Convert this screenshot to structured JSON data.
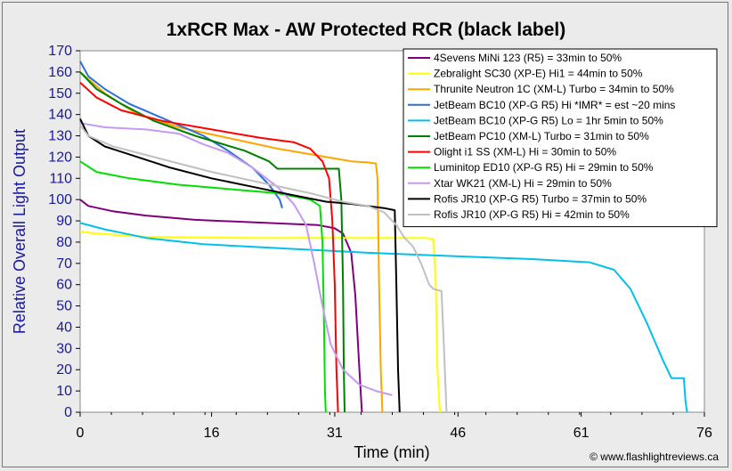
{
  "chart_data": {
    "type": "line",
    "title": "1xRCR Max - AW Protected RCR (black label)",
    "xlabel": "Time (min)",
    "ylabel": "Relative Overall Light Output",
    "xlim": [
      0,
      76
    ],
    "ylim": [
      0,
      170
    ],
    "xticks": [
      "0",
      "16",
      "31",
      "46",
      "61",
      "76"
    ],
    "yticks": [
      "0",
      "10",
      "20",
      "30",
      "40",
      "50",
      "60",
      "70",
      "80",
      "90",
      "100",
      "110",
      "120",
      "130",
      "140",
      "150",
      "160",
      "170"
    ],
    "legend_position": "top-right",
    "credit": "© www.flashlightreviews.ca",
    "series": [
      {
        "name": "4Sevens MiNi 123 (R5) = 33min to 50%",
        "color": "#800080",
        "points": [
          [
            0,
            100
          ],
          [
            1,
            97
          ],
          [
            4,
            94.5
          ],
          [
            8,
            92.5
          ],
          [
            14,
            90.5
          ],
          [
            20,
            89.5
          ],
          [
            26,
            88.5
          ],
          [
            29,
            88
          ],
          [
            31,
            86.5
          ],
          [
            32,
            84
          ],
          [
            33,
            75
          ],
          [
            33.5,
            55
          ],
          [
            34,
            20
          ],
          [
            34.3,
            0
          ]
        ]
      },
      {
        "name": "Zebralight SC30 (XP-E) Hi1 = 44min to 50%",
        "color": "#ffff00",
        "points": [
          [
            0,
            85
          ],
          [
            2,
            84
          ],
          [
            8,
            82.5
          ],
          [
            20,
            82
          ],
          [
            35,
            82
          ],
          [
            42,
            82
          ],
          [
            43,
            81.5
          ],
          [
            43.3,
            60
          ],
          [
            43.5,
            20
          ],
          [
            43.8,
            0
          ]
        ]
      },
      {
        "name": "Thrunite Neutron 1C (XM-L) Turbo = 34min to 50%",
        "color": "#ffa500",
        "points": [
          [
            0,
            160
          ],
          [
            3,
            150
          ],
          [
            7,
            140
          ],
          [
            12,
            134
          ],
          [
            18,
            129
          ],
          [
            24,
            124
          ],
          [
            30,
            120
          ],
          [
            33,
            118
          ],
          [
            35,
            117.5
          ],
          [
            36,
            117
          ],
          [
            36.2,
            110
          ],
          [
            36.4,
            60
          ],
          [
            36.6,
            20
          ],
          [
            36.8,
            0
          ]
        ]
      },
      {
        "name": "JetBeam BC10 (XP-G R5) Hi *IMR* = est ~20 mins",
        "color": "#2e6fd6",
        "points": [
          [
            0,
            165
          ],
          [
            1,
            158
          ],
          [
            3,
            152
          ],
          [
            6,
            145
          ],
          [
            9,
            140
          ],
          [
            12,
            135
          ],
          [
            15,
            130
          ],
          [
            18,
            123
          ],
          [
            21,
            115
          ],
          [
            23,
            107
          ],
          [
            24.3,
            100
          ],
          [
            24.6,
            96
          ]
        ]
      },
      {
        "name": "JetBeam BC10 (XP-G R5) Lo = 1hr 5min to 50%",
        "color": "#00c0ec",
        "points": [
          [
            0,
            89
          ],
          [
            3,
            86
          ],
          [
            8,
            82
          ],
          [
            15,
            79
          ],
          [
            25,
            77
          ],
          [
            35,
            75
          ],
          [
            45,
            73.5
          ],
          [
            55,
            72
          ],
          [
            62,
            70.5
          ],
          [
            65,
            67
          ],
          [
            67,
            58
          ],
          [
            69,
            42
          ],
          [
            71,
            24
          ],
          [
            72,
            16
          ],
          [
            73.5,
            16
          ],
          [
            73.7,
            5
          ],
          [
            73.9,
            0
          ]
        ]
      },
      {
        "name": "JetBeam PC10 (XM-L) Turbo = 31min to 50%",
        "color": "#008000",
        "points": [
          [
            0,
            160
          ],
          [
            2,
            152
          ],
          [
            5,
            145
          ],
          [
            9,
            137
          ],
          [
            14,
            130
          ],
          [
            20,
            123
          ],
          [
            23,
            118
          ],
          [
            24,
            114.5
          ],
          [
            28,
            114.5
          ],
          [
            31.5,
            114.5
          ],
          [
            31.8,
            100
          ],
          [
            32,
            60
          ],
          [
            32.1,
            20
          ],
          [
            32.2,
            0
          ]
        ]
      },
      {
        "name": "Olight i1 SS (XM-L) Hi = 30min to 50%",
        "color": "#ff0000",
        "points": [
          [
            0,
            155
          ],
          [
            2,
            148
          ],
          [
            5,
            142
          ],
          [
            10,
            137
          ],
          [
            16,
            133
          ],
          [
            22,
            129
          ],
          [
            26,
            127
          ],
          [
            28,
            124
          ],
          [
            29.5,
            118
          ],
          [
            30.3,
            110
          ],
          [
            30.7,
            90
          ],
          [
            31,
            60
          ],
          [
            31.2,
            20
          ],
          [
            31.4,
            0
          ]
        ]
      },
      {
        "name": "Luminitop ED10 (XP-G R5) Hi = 29min to 50%",
        "color": "#00e000",
        "points": [
          [
            0,
            118
          ],
          [
            2,
            113
          ],
          [
            6,
            110
          ],
          [
            12,
            107
          ],
          [
            18,
            105
          ],
          [
            24,
            103
          ],
          [
            28,
            100
          ],
          [
            29.2,
            97
          ],
          [
            29.5,
            80
          ],
          [
            29.7,
            40
          ],
          [
            29.8,
            10
          ],
          [
            29.9,
            0
          ]
        ]
      },
      {
        "name": "Xtar WK21 (XM-L) Hi = 29min to 50%",
        "color": "#c59aef",
        "points": [
          [
            0,
            136
          ],
          [
            3,
            134
          ],
          [
            8,
            133
          ],
          [
            12,
            131
          ],
          [
            15,
            126
          ],
          [
            18,
            122
          ],
          [
            21,
            115
          ],
          [
            24,
            106
          ],
          [
            26,
            98
          ],
          [
            27.5,
            88
          ],
          [
            28.5,
            70
          ],
          [
            29.5,
            50
          ],
          [
            30.5,
            32
          ],
          [
            32,
            20
          ],
          [
            34,
            13
          ],
          [
            36,
            10
          ],
          [
            38,
            8
          ]
        ]
      },
      {
        "name": "Rofis JR10 (XP-G R5) Turbo = 37min to 50%",
        "color": "#000000",
        "points": [
          [
            0,
            138
          ],
          [
            1,
            130
          ],
          [
            3,
            125
          ],
          [
            7,
            120
          ],
          [
            11,
            115
          ],
          [
            16,
            110
          ],
          [
            21,
            106
          ],
          [
            26,
            102
          ],
          [
            30,
            99
          ],
          [
            33,
            98
          ],
          [
            37,
            96
          ],
          [
            38.3,
            95
          ],
          [
            38.5,
            60
          ],
          [
            38.7,
            20
          ],
          [
            38.9,
            0
          ]
        ]
      },
      {
        "name": "Rofis JR10 (XP-G R5) Hi = 42min to 50%",
        "color": "#c0c0c0",
        "points": [
          [
            0,
            135
          ],
          [
            1,
            130
          ],
          [
            4,
            125
          ],
          [
            8,
            121
          ],
          [
            12,
            117
          ],
          [
            16,
            113
          ],
          [
            22,
            108
          ],
          [
            28,
            103
          ],
          [
            32,
            99
          ],
          [
            35,
            97
          ],
          [
            37,
            94
          ],
          [
            38.5,
            88
          ],
          [
            39.5,
            82
          ],
          [
            40.5,
            78
          ],
          [
            41.5,
            70
          ],
          [
            42.5,
            60
          ],
          [
            43,
            58
          ],
          [
            44,
            57
          ],
          [
            44.3,
            30
          ],
          [
            44.5,
            10
          ],
          [
            44.6,
            0
          ]
        ]
      }
    ]
  }
}
